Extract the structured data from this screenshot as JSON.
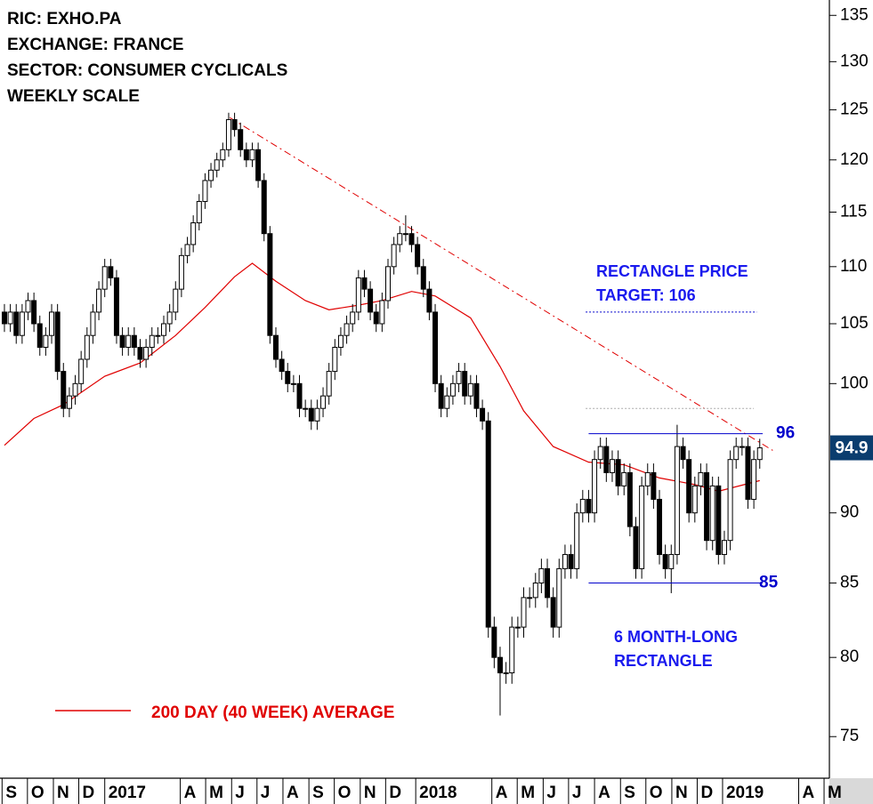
{
  "chart_data": {
    "type": "candlestick",
    "header": [
      "RIC: EXHO.PA",
      "EXCHANGE: FRANCE",
      "SECTOR: CONSUMER CYCLICALS",
      "WEEKLY SCALE"
    ],
    "open": [
      106,
      105,
      106,
      104,
      106,
      107,
      105,
      103,
      104,
      106,
      101,
      98,
      99,
      100,
      102,
      104,
      106,
      108,
      110,
      109,
      104,
      103,
      104,
      103,
      102,
      103,
      104,
      104,
      105,
      106,
      108,
      111,
      112,
      114,
      116,
      118,
      119,
      120,
      121,
      124,
      123,
      121,
      120,
      121,
      118,
      113,
      104,
      102,
      101,
      100,
      100,
      98,
      98,
      97,
      98,
      99,
      101,
      103,
      104,
      105,
      106,
      109,
      108,
      106,
      105,
      107,
      110,
      112,
      113,
      113,
      112,
      110,
      108,
      106,
      100,
      98,
      99,
      100,
      101,
      99,
      100,
      98,
      97,
      82,
      80,
      79,
      79,
      82,
      82,
      84,
      84,
      85,
      86,
      84,
      82,
      86,
      87,
      86,
      90,
      91,
      90,
      94,
      95,
      93,
      94,
      92,
      93,
      89,
      86,
      92,
      93,
      91,
      87,
      86,
      87,
      95,
      94,
      90,
      92,
      93,
      88,
      92,
      87,
      88,
      94,
      95,
      95,
      91,
      94
    ],
    "high": [
      106.7,
      106.7,
      106.7,
      106.7,
      107.7,
      107.7,
      105.7,
      104.7,
      106.7,
      106.7,
      101.7,
      99.7,
      100.7,
      102.7,
      104.7,
      106.7,
      108.7,
      110.7,
      110.7,
      109.7,
      104.7,
      104.7,
      104.7,
      103.7,
      103.7,
      104.7,
      104.7,
      105.7,
      106.7,
      108.7,
      111.7,
      112.7,
      114.7,
      116.7,
      118.7,
      119.7,
      120.7,
      121.7,
      124.7,
      124.7,
      123.7,
      121.7,
      121.7,
      121.7,
      118.7,
      113.7,
      104.7,
      102.7,
      101.7,
      100.7,
      100.7,
      98.7,
      98.7,
      98.7,
      99.7,
      101.7,
      103.7,
      104.7,
      105.7,
      106.7,
      109.7,
      109.7,
      108.7,
      106.7,
      107.7,
      110.7,
      112.7,
      113.7,
      114.7,
      113.7,
      112.7,
      110.7,
      108.7,
      106.7,
      100.7,
      99.7,
      100.7,
      101.7,
      101.7,
      100.7,
      100.7,
      98.7,
      97.7,
      82.7,
      80.7,
      79.7,
      82.7,
      82.7,
      84.7,
      84.7,
      85.7,
      86.7,
      86.7,
      84.7,
      86.7,
      87.7,
      87.7,
      90.7,
      91.7,
      91.7,
      94.7,
      95.7,
      95.7,
      94.7,
      94.7,
      93.7,
      93.7,
      89.7,
      92.7,
      93.7,
      93.7,
      91.7,
      87.7,
      87.7,
      96.7,
      95.7,
      94.7,
      92.7,
      93.7,
      93.7,
      92.7,
      92.7,
      88.7,
      94.7,
      95.7,
      95.7,
      95.7,
      94.7,
      95.6
    ],
    "low": [
      104.3,
      104.3,
      103.3,
      103.3,
      105.3,
      104.3,
      102.3,
      102.3,
      103.3,
      100.3,
      97.3,
      97.3,
      98.3,
      99.3,
      101.3,
      103.3,
      105.3,
      107.3,
      108.3,
      103.3,
      102.3,
      102.3,
      102.3,
      101.3,
      101.3,
      102.3,
      103.3,
      103.3,
      104.3,
      105.3,
      107.3,
      110.3,
      111.3,
      113.3,
      115.3,
      117.3,
      118.3,
      119.3,
      120.3,
      122.3,
      120.3,
      119.3,
      119.3,
      117.3,
      112.3,
      103.3,
      101.3,
      100.3,
      99.3,
      99.3,
      97.3,
      97.3,
      96.3,
      96.3,
      97.3,
      98.3,
      100.3,
      102.3,
      103.3,
      104.3,
      105.3,
      107.3,
      105.3,
      104.3,
      104.3,
      106.3,
      109.3,
      111.3,
      112.3,
      111.3,
      109.3,
      107.3,
      105.3,
      99.3,
      97.3,
      97.3,
      98.3,
      99.3,
      98.3,
      98.3,
      97.3,
      96.3,
      81.3,
      79.3,
      76.3,
      78.3,
      78.3,
      81.3,
      81.3,
      83.3,
      83.3,
      84.3,
      83.3,
      81.3,
      81.3,
      85.3,
      85.3,
      85.3,
      89.3,
      89.3,
      89.3,
      93.3,
      92.3,
      92.3,
      91.3,
      91.3,
      88.3,
      85.3,
      85.3,
      91.3,
      90.3,
      86.3,
      85.3,
      84.3,
      86.3,
      93.3,
      89.3,
      89.3,
      91.3,
      87.3,
      87.3,
      86.3,
      86.3,
      87.3,
      93.3,
      94.3,
      90.3,
      90.3,
      93.3
    ],
    "close": [
      105,
      106,
      104,
      106,
      107,
      105,
      103,
      104,
      106,
      101,
      98,
      99,
      100,
      102,
      104,
      106,
      108,
      110,
      109,
      104,
      103,
      104,
      103,
      102,
      103,
      104,
      104,
      105,
      106,
      108,
      111,
      112,
      114,
      116,
      118,
      119,
      120,
      121,
      124,
      123,
      121,
      120,
      121,
      118,
      113,
      104,
      102,
      101,
      100,
      100,
      98,
      98,
      97,
      98,
      99,
      101,
      103,
      104,
      105,
      106,
      109,
      108,
      106,
      105,
      107,
      110,
      112,
      113,
      113,
      112,
      110,
      108,
      106,
      100,
      98,
      99,
      100,
      101,
      99,
      100,
      98,
      97,
      82,
      80,
      79,
      79,
      82,
      82,
      84,
      84,
      85,
      86,
      84,
      82,
      86,
      87,
      86,
      90,
      91,
      90,
      94,
      95,
      93,
      94,
      92,
      93,
      89,
      86,
      92,
      93,
      91,
      87,
      86,
      87,
      95,
      94,
      90,
      92,
      93,
      88,
      92,
      87,
      88,
      94,
      95,
      95,
      91,
      94,
      94.9
    ],
    "up_color": "#ffffff",
    "down_color": "#000000",
    "ylim": [
      72.5,
      136.7
    ],
    "log": true,
    "yticks": [
      75,
      80,
      85,
      90,
      100,
      105,
      110,
      115,
      120,
      125,
      130,
      135
    ],
    "xlim": [
      -0.75,
      139.5
    ],
    "xticks": [
      {
        "value": -0.4,
        "label": "S"
      },
      {
        "value": 3.9,
        "label": "O"
      },
      {
        "value": 8.3,
        "label": "N"
      },
      {
        "value": 12.6,
        "label": "D"
      },
      {
        "value": 17,
        "label": "2017"
      },
      {
        "value": 29.8,
        "label": "A"
      },
      {
        "value": 34.1,
        "label": "M"
      },
      {
        "value": 38.5,
        "label": "J"
      },
      {
        "value": 42.8,
        "label": "J"
      },
      {
        "value": 47.2,
        "label": "A"
      },
      {
        "value": 51.6,
        "label": "S"
      },
      {
        "value": 55.9,
        "label": "O"
      },
      {
        "value": 60.3,
        "label": "N"
      },
      {
        "value": 64.6,
        "label": "D"
      },
      {
        "value": 69.7,
        "label": "2018"
      },
      {
        "value": 82.6,
        "label": "A"
      },
      {
        "value": 86.9,
        "label": "M"
      },
      {
        "value": 91.3,
        "label": "J"
      },
      {
        "value": 95.6,
        "label": "J"
      },
      {
        "value": 100,
        "label": "A"
      },
      {
        "value": 104.4,
        "label": "S"
      },
      {
        "value": 108.7,
        "label": "O"
      },
      {
        "value": 113.1,
        "label": "N"
      },
      {
        "value": 117.4,
        "label": "D"
      },
      {
        "value": 121.7,
        "label": "2019"
      },
      {
        "value": 134.6,
        "label": "A"
      },
      {
        "value": 138.9,
        "label": "M"
      }
    ],
    "series": [
      {
        "name": "200 DAY (40 WEEK) AVERAGE",
        "color": "#e00000",
        "x": [
          0,
          5,
          10,
          17,
          23,
          29,
          34,
          39,
          42,
          46,
          51,
          55,
          60,
          64,
          69,
          73,
          79,
          84,
          88,
          93,
          99,
          105,
          111,
          117,
          121,
          128
        ],
        "values": [
          95.1,
          97.2,
          98.3,
          100.6,
          101.7,
          104,
          106.4,
          109.1,
          110.3,
          108.7,
          107,
          106.2,
          106.6,
          107,
          107.8,
          107.4,
          105.5,
          101.4,
          97.8,
          95,
          93.8,
          93.6,
          92.6,
          92.1,
          91.6,
          92.4
        ]
      }
    ],
    "trendline": {
      "color": "#e00000",
      "x": [
        38.2,
        130.2
      ],
      "values": [
        124.2,
        94.7
      ]
    },
    "levels": [
      {
        "value": 96,
        "label": "96",
        "color": "#0000cc",
        "x": [
          99,
          128.5
        ]
      },
      {
        "value": 85,
        "label": "85",
        "color": "#0000cc",
        "x": [
          99,
          128.5
        ]
      }
    ],
    "target": {
      "value": 106,
      "color": "#0000cc",
      "x": [
        98.5,
        127.5
      ]
    },
    "height_line": {
      "value": 98,
      "color": "#aaaaaa",
      "x": [
        98.5,
        127
      ]
    },
    "annotations": [
      {
        "lines": [
          "RECTANGLE PRICE",
          "TARGET: 106"
        ],
        "color": "#1a1aee"
      },
      {
        "lines": [
          "6 MONTH-LONG",
          "RECTANGLE"
        ],
        "color": "#1a1aee"
      }
    ],
    "price_box_color": "#0b3d6e"
  }
}
